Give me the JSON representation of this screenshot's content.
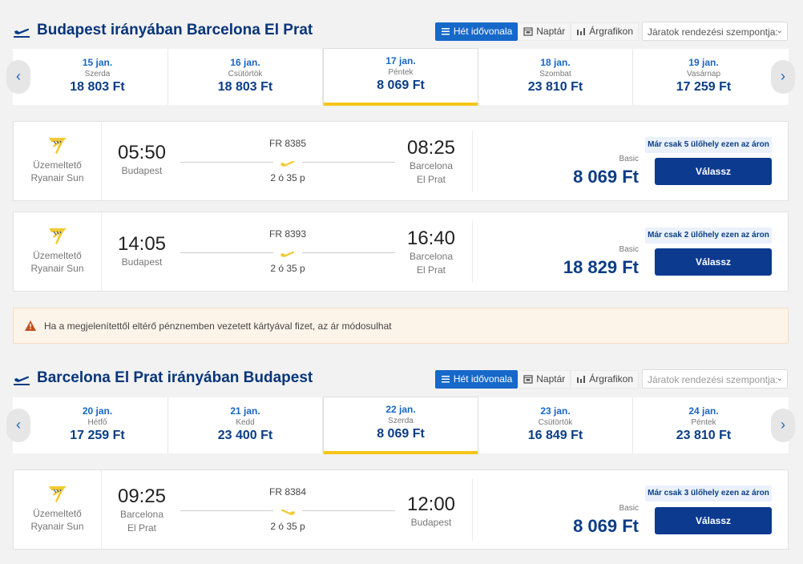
{
  "outbound": {
    "title": "Budapest irányában Barcelona El Prat",
    "view": {
      "week": "Hét idővonala",
      "calendar": "Naptár",
      "price_chart": "Árgrafikon"
    },
    "sort_placeholder": "Járatok rendezési szempontja:",
    "dates": [
      {
        "date": "15 jan.",
        "weekday": "Szerda",
        "price": "18 803 Ft"
      },
      {
        "date": "16 jan.",
        "weekday": "Csütörtök",
        "price": "18 803 Ft"
      },
      {
        "date": "17 jan.",
        "weekday": "Péntek",
        "price": "8 069 Ft",
        "selected": true
      },
      {
        "date": "18 jan.",
        "weekday": "Szombat",
        "price": "23 810 Ft"
      },
      {
        "date": "19 jan.",
        "weekday": "Vasárnap",
        "price": "17 259 Ft"
      }
    ],
    "flights": [
      {
        "operator_label": "Üzemeltető",
        "operator": "Ryanair Sun",
        "dep_time": "05:50",
        "dep_place": [
          "Budapest"
        ],
        "arr_time": "08:25",
        "arr_place": [
          "Barcelona",
          "El Prat"
        ],
        "flight_no": "FR 8385",
        "duration": "2 ó 35 p",
        "fare": "Basic",
        "price": "8 069 Ft",
        "seats": "Már csak 5 ülőhely ezen az áron",
        "button": "Válassz"
      },
      {
        "operator_label": "Üzemeltető",
        "operator": "Ryanair Sun",
        "dep_time": "14:05",
        "dep_place": [
          "Budapest"
        ],
        "arr_time": "16:40",
        "arr_place": [
          "Barcelona",
          "El Prat"
        ],
        "flight_no": "FR 8393",
        "duration": "2 ó 35 p",
        "fare": "Basic",
        "price": "18 829 Ft",
        "seats": "Már csak 2 ülőhely ezen az áron",
        "button": "Válassz"
      }
    ]
  },
  "notice": "Ha a megjelenítettől eltérő pénznemben vezetett kártyával fizet, az ár módosulhat",
  "inbound": {
    "title": "Barcelona El Prat irányában Budapest",
    "view": {
      "week": "Hét idővonala",
      "calendar": "Naptár",
      "price_chart": "Árgrafikon"
    },
    "sort_placeholder": "Járatok rendezési szempontja:",
    "dates": [
      {
        "date": "20 jan.",
        "weekday": "Hétfő",
        "price": "17 259 Ft"
      },
      {
        "date": "21 jan.",
        "weekday": "Kedd",
        "price": "23 400 Ft"
      },
      {
        "date": "22 jan.",
        "weekday": "Szerda",
        "price": "8 069 Ft",
        "selected": true
      },
      {
        "date": "23 jan.",
        "weekday": "Csütörtök",
        "price": "16 849 Ft"
      },
      {
        "date": "24 jan.",
        "weekday": "Péntek",
        "price": "23 810 Ft"
      }
    ],
    "flights": [
      {
        "operator_label": "Üzemeltető",
        "operator": "Ryanair Sun",
        "dep_time": "09:25",
        "dep_place": [
          "Barcelona",
          "El Prat"
        ],
        "arr_time": "12:00",
        "arr_place": [
          "Budapest"
        ],
        "flight_no": "FR 8384",
        "duration": "2 ó 35 p",
        "fare": "Basic",
        "price": "8 069 Ft",
        "seats": "Már csak 3 ülőhely ezen az áron",
        "button": "Válassz"
      }
    ]
  },
  "icons": {
    "section": "plane-takeoff-icon",
    "calendar": "calendar-icon",
    "chart": "bar-chart-icon",
    "warning": "warning-triangle-icon",
    "airline": "ryanair-harp-logo-icon",
    "route": "plane-icon"
  },
  "colors": {
    "accent": "#1668c9",
    "navy": "#0b3d86",
    "button": "#0b3a8f",
    "highlight": "#f5c518",
    "logo": "#f1c933",
    "warning": "#c0501f"
  }
}
